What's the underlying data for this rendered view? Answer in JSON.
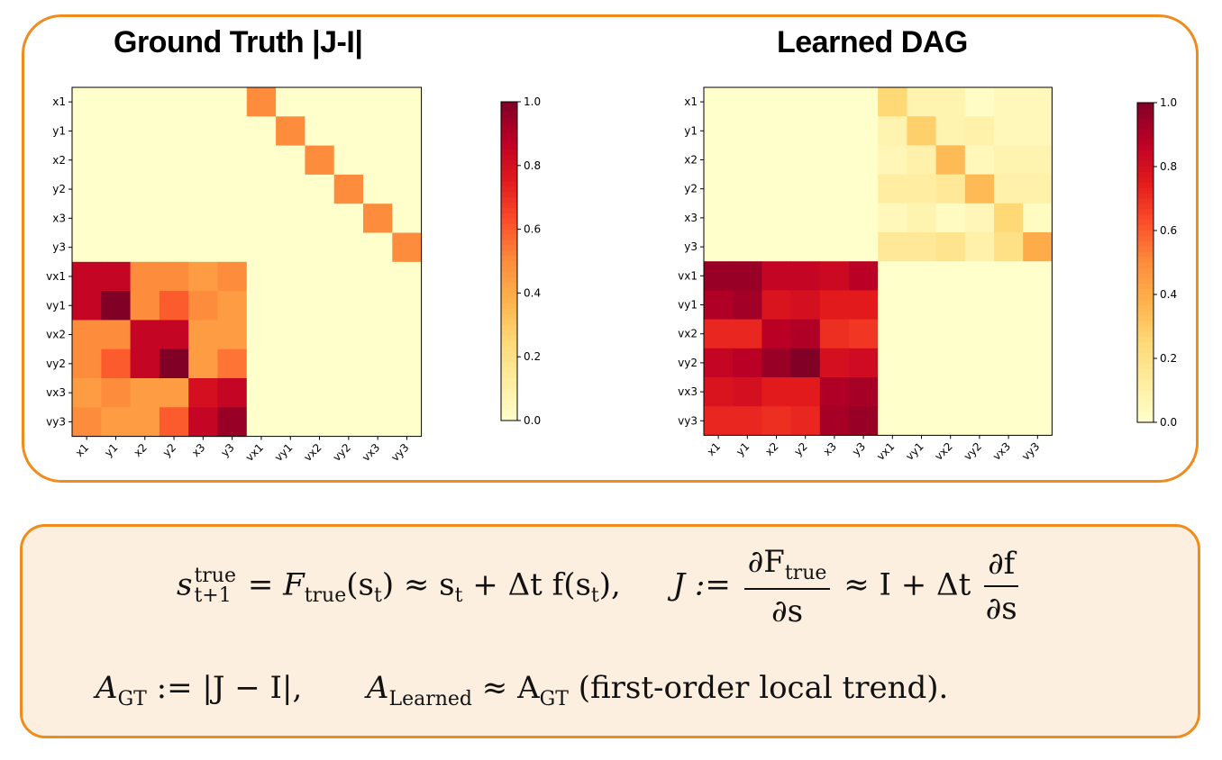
{
  "chart_data": [
    {
      "type": "heatmap",
      "title": "Ground Truth |J-I|",
      "row_labels": [
        "x1",
        "y1",
        "x2",
        "y2",
        "x3",
        "y3",
        "vx1",
        "vy1",
        "vx2",
        "vy2",
        "vx3",
        "vy3"
      ],
      "col_labels": [
        "x1",
        "y1",
        "x2",
        "y2",
        "x3",
        "y3",
        "vx1",
        "vy1",
        "vx2",
        "vy2",
        "vx3",
        "vy3"
      ],
      "values": [
        [
          0,
          0,
          0,
          0,
          0,
          0,
          0.5,
          0,
          0,
          0,
          0,
          0
        ],
        [
          0,
          0,
          0,
          0,
          0,
          0,
          0,
          0.5,
          0,
          0,
          0,
          0
        ],
        [
          0,
          0,
          0,
          0,
          0,
          0,
          0,
          0,
          0.5,
          0,
          0,
          0
        ],
        [
          0,
          0,
          0,
          0,
          0,
          0,
          0,
          0,
          0,
          0.5,
          0,
          0
        ],
        [
          0,
          0,
          0,
          0,
          0,
          0,
          0,
          0,
          0,
          0,
          0.5,
          0
        ],
        [
          0,
          0,
          0,
          0,
          0,
          0,
          0,
          0,
          0,
          0,
          0,
          0.5
        ],
        [
          0.85,
          0.85,
          0.5,
          0.5,
          0.45,
          0.5,
          0,
          0,
          0,
          0,
          0,
          0
        ],
        [
          0.85,
          1.0,
          0.5,
          0.6,
          0.5,
          0.45,
          0,
          0,
          0,
          0,
          0,
          0
        ],
        [
          0.5,
          0.5,
          0.85,
          0.85,
          0.45,
          0.45,
          0,
          0,
          0,
          0,
          0,
          0
        ],
        [
          0.5,
          0.6,
          0.85,
          1.0,
          0.45,
          0.55,
          0,
          0,
          0,
          0,
          0,
          0
        ],
        [
          0.45,
          0.5,
          0.45,
          0.45,
          0.8,
          0.85,
          0,
          0,
          0,
          0,
          0,
          0
        ],
        [
          0.5,
          0.45,
          0.45,
          0.6,
          0.85,
          0.95,
          0,
          0,
          0,
          0,
          0,
          0
        ]
      ],
      "colorbar": {
        "min": 0.0,
        "max": 1.0,
        "ticks": [
          "0.0",
          "0.2",
          "0.4",
          "0.6",
          "0.8",
          "1.0"
        ],
        "colormap": "YlOrRd"
      }
    },
    {
      "type": "heatmap",
      "title": "Learned DAG",
      "row_labels": [
        "x1",
        "y1",
        "x2",
        "y2",
        "x3",
        "y3",
        "vx1",
        "vy1",
        "vx2",
        "vy2",
        "vx3",
        "vy3"
      ],
      "col_labels": [
        "x1",
        "y1",
        "x2",
        "y2",
        "x3",
        "y3",
        "vx1",
        "vy1",
        "vx2",
        "vy2",
        "vx3",
        "vy3"
      ],
      "values": [
        [
          0,
          0,
          0,
          0,
          0,
          0,
          0.25,
          0.08,
          0.08,
          0.02,
          0.05,
          0.05
        ],
        [
          0,
          0,
          0,
          0,
          0,
          0,
          0.08,
          0.28,
          0.08,
          0.1,
          0.05,
          0.05
        ],
        [
          0,
          0,
          0,
          0,
          0,
          0,
          0.06,
          0.1,
          0.35,
          0.05,
          0.08,
          0.08
        ],
        [
          0,
          0,
          0,
          0,
          0,
          0,
          0.12,
          0.12,
          0.15,
          0.35,
          0.1,
          0.1
        ],
        [
          0,
          0,
          0,
          0,
          0,
          0,
          0.05,
          0.08,
          0.03,
          0.06,
          0.25,
          0.03
        ],
        [
          0,
          0,
          0,
          0,
          0,
          0,
          0.15,
          0.15,
          0.18,
          0.1,
          0.2,
          0.4
        ],
        [
          0.95,
          0.95,
          0.85,
          0.85,
          0.83,
          0.88,
          0,
          0,
          0,
          0,
          0,
          0
        ],
        [
          0.9,
          0.93,
          0.78,
          0.8,
          0.75,
          0.75,
          0,
          0,
          0,
          0,
          0,
          0
        ],
        [
          0.72,
          0.72,
          0.88,
          0.9,
          0.7,
          0.68,
          0,
          0,
          0,
          0,
          0,
          0
        ],
        [
          0.85,
          0.88,
          0.95,
          1.0,
          0.8,
          0.82,
          0,
          0,
          0,
          0,
          0,
          0
        ],
        [
          0.78,
          0.8,
          0.75,
          0.75,
          0.9,
          0.92,
          0,
          0,
          0,
          0,
          0,
          0
        ],
        [
          0.72,
          0.72,
          0.7,
          0.72,
          0.92,
          0.95,
          0,
          0,
          0,
          0,
          0,
          0
        ]
      ],
      "colorbar": {
        "min": 0.0,
        "max": 1.0,
        "ticks": [
          "0.0",
          "0.2",
          "0.4",
          "0.6",
          "0.8",
          "1.0"
        ],
        "colormap": "YlOrRd"
      }
    }
  ],
  "equations": {
    "line1": {
      "s": "s",
      "sub": "t+1",
      "sup": "true",
      "eq1": "= ",
      "F": "F",
      "F_sub": "true",
      "F_arg": "(s",
      "F_arg_sub": "t",
      "F_arg_close": ")",
      "approx1": " ≈ s",
      "approx1_sub": "t",
      "plus1": " + Δt f(s",
      "plus1_sub": "t",
      "close1": "),",
      "J": "J :=",
      "frac1_num": "∂F",
      "frac1_num_sub": "true",
      "frac1_den": "∂s",
      "approx2": "≈ I + Δt",
      "frac2_num": "∂f",
      "frac2_den": "∂s"
    },
    "line2": {
      "A": "A",
      "A_sub": "GT",
      "def": " := |J − I|,",
      "A2": "A",
      "A2_sub": "Learned",
      "approx": " ≈ A",
      "approx_sub": "GT",
      "tail": " (first-order local trend)."
    }
  }
}
